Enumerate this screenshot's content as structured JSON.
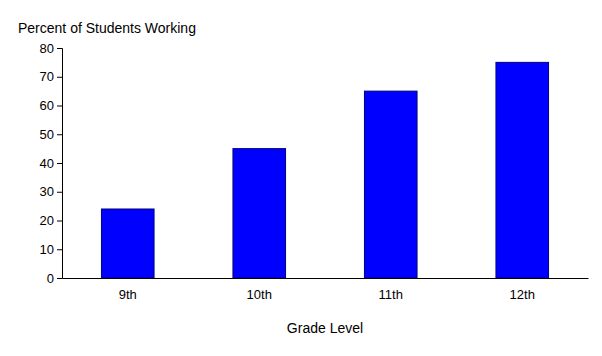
{
  "chart_data": {
    "type": "bar",
    "categories": [
      "9th",
      "10th",
      "11th",
      "12th"
    ],
    "values": [
      24,
      45,
      65,
      75
    ],
    "color": "#0000ff",
    "x_label": "Grade Level",
    "y_label": "Percent of Students Working",
    "ylim": [
      0,
      80
    ],
    "yticks": [
      0,
      10,
      20,
      30,
      40,
      50,
      60,
      70,
      80
    ],
    "grid": false
  }
}
